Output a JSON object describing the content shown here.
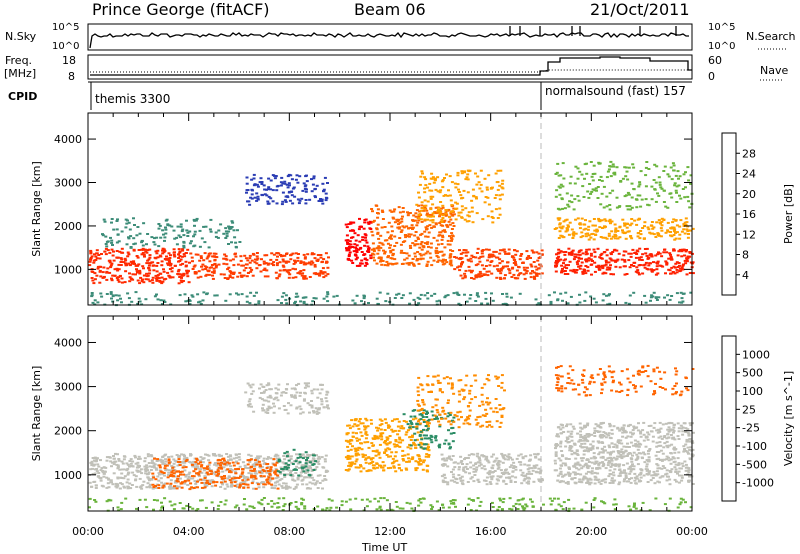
{
  "header": {
    "station": "Prince George (fitACF)",
    "beam": "Beam 06",
    "date": "21/Oct/2011"
  },
  "top_panels": {
    "nsky_label": "N.Sky",
    "nsky_ticks": [
      "10^5",
      "10^0"
    ],
    "nsearch_label": "N.Search",
    "nsearch_ticks": [
      "10^5",
      "10^0"
    ],
    "freq_label": "Freq.",
    "freq_unit": "[MHz]",
    "freq_ticks": [
      "18",
      "8"
    ],
    "nave_label": "Nave",
    "nave_ticks": [
      "60",
      "0"
    ],
    "cpid_label": "CPID",
    "cpid_segments": [
      {
        "label": "themis 3300",
        "start_hour": 0,
        "end_hour": 18.1
      },
      {
        "label": "normalsound (fast) 157",
        "start_hour": 18.1,
        "end_hour": 24
      }
    ]
  },
  "chart_data": [
    {
      "type": "heatmap",
      "panel": "power",
      "ylabel": "Slant Range [km]",
      "xlabel": "",
      "ylim": [
        180,
        4600
      ],
      "xlim": [
        0,
        24
      ],
      "yticks": [
        1000,
        2000,
        3000,
        4000
      ],
      "colorbar": {
        "label": "Power [dB]",
        "ticks": [
          "28",
          "24",
          "20",
          "16",
          "12",
          "8",
          "4"
        ],
        "colors": [
          "#0000ff",
          "#2a3cb4",
          "#3c8c78",
          "#6ab43c",
          "#c8d800",
          "#ffa000",
          "#ff6400",
          "#ff0000"
        ]
      },
      "scatter_regions": [
        {
          "x0": 0.0,
          "x1": 4.0,
          "y0": 700,
          "y1": 1500,
          "color": "#ff2a00",
          "density": 0.85
        },
        {
          "x0": 0.5,
          "x1": 6.0,
          "y0": 1500,
          "y1": 2200,
          "color": "#3c8c78",
          "density": 0.35
        },
        {
          "x0": 4.0,
          "x1": 9.5,
          "y0": 800,
          "y1": 1400,
          "color": "#ff3c00",
          "density": 0.75
        },
        {
          "x0": 6.2,
          "x1": 9.5,
          "y0": 2500,
          "y1": 3200,
          "color": "#2a3cb4",
          "density": 0.55
        },
        {
          "x0": 10.2,
          "x1": 11.2,
          "y0": 1100,
          "y1": 2200,
          "color": "#ff0000",
          "density": 0.9
        },
        {
          "x0": 11.2,
          "x1": 14.5,
          "y0": 1100,
          "y1": 2500,
          "color": "#ff6400",
          "density": 0.7
        },
        {
          "x0": 13.0,
          "x1": 16.5,
          "y0": 2100,
          "y1": 3300,
          "color": "#ffa000",
          "density": 0.4
        },
        {
          "x0": 14.5,
          "x1": 18.0,
          "y0": 800,
          "y1": 1500,
          "color": "#ff4000",
          "density": 0.8
        },
        {
          "x0": 18.5,
          "x1": 24.0,
          "y0": 900,
          "y1": 1500,
          "color": "#ff2000",
          "density": 0.9
        },
        {
          "x0": 18.5,
          "x1": 24.0,
          "y0": 1700,
          "y1": 2200,
          "color": "#ffa000",
          "density": 0.75
        },
        {
          "x0": 18.5,
          "x1": 24.0,
          "y0": 2400,
          "y1": 3500,
          "color": "#6ab43c",
          "density": 0.3
        },
        {
          "x0": 0.0,
          "x1": 24.0,
          "y0": 200,
          "y1": 500,
          "color": "#3c8c78",
          "density": 0.3
        }
      ]
    },
    {
      "type": "heatmap",
      "panel": "velocity",
      "ylabel": "Slant Range [km]",
      "xlabel": "Time UT",
      "ylim": [
        180,
        4600
      ],
      "xlim": [
        0,
        24
      ],
      "yticks": [
        1000,
        2000,
        3000,
        4000
      ],
      "xticks": [
        "00:00",
        "04:00",
        "08:00",
        "12:00",
        "16:00",
        "20:00",
        "00:00"
      ],
      "colorbar": {
        "label": "Velocity [m s^-1]",
        "ticks": [
          "1000",
          "500",
          "100",
          "25",
          "-25",
          "-100",
          "-500",
          "-1000"
        ],
        "colors": [
          "#ff0000",
          "#ff6400",
          "#ffa000",
          "#c8c8c8",
          "#6ab43c",
          "#2a8c64",
          "#2a3cb4",
          "#0000ff"
        ]
      },
      "scatter_regions": [
        {
          "x0": 0.0,
          "x1": 9.5,
          "y0": 700,
          "y1": 1500,
          "color": "#c0c0b8",
          "density": 0.85
        },
        {
          "x0": 2.5,
          "x1": 7.5,
          "y0": 700,
          "y1": 1400,
          "color": "#ff6400",
          "density": 0.6
        },
        {
          "x0": 7.5,
          "x1": 9.0,
          "y0": 1000,
          "y1": 1600,
          "color": "#2a8c64",
          "density": 0.5
        },
        {
          "x0": 6.2,
          "x1": 9.5,
          "y0": 2400,
          "y1": 3100,
          "color": "#c0c0b8",
          "density": 0.55
        },
        {
          "x0": 10.2,
          "x1": 13.5,
          "y0": 1100,
          "y1": 2300,
          "color": "#ffa000",
          "density": 0.75
        },
        {
          "x0": 12.5,
          "x1": 14.5,
          "y0": 1600,
          "y1": 2500,
          "color": "#2a8c64",
          "density": 0.45
        },
        {
          "x0": 13.0,
          "x1": 16.5,
          "y0": 2100,
          "y1": 3300,
          "color": "#ff8c00",
          "density": 0.35
        },
        {
          "x0": 14.0,
          "x1": 18.0,
          "y0": 800,
          "y1": 1500,
          "color": "#c0c0b8",
          "density": 0.85
        },
        {
          "x0": 18.5,
          "x1": 24.0,
          "y0": 800,
          "y1": 2200,
          "color": "#c0c0b8",
          "density": 0.9
        },
        {
          "x0": 18.5,
          "x1": 24.0,
          "y0": 2800,
          "y1": 3500,
          "color": "#ff6400",
          "density": 0.3
        },
        {
          "x0": 0.0,
          "x1": 24.0,
          "y0": 200,
          "y1": 500,
          "color": "#6ab43c",
          "density": 0.3
        }
      ]
    }
  ]
}
